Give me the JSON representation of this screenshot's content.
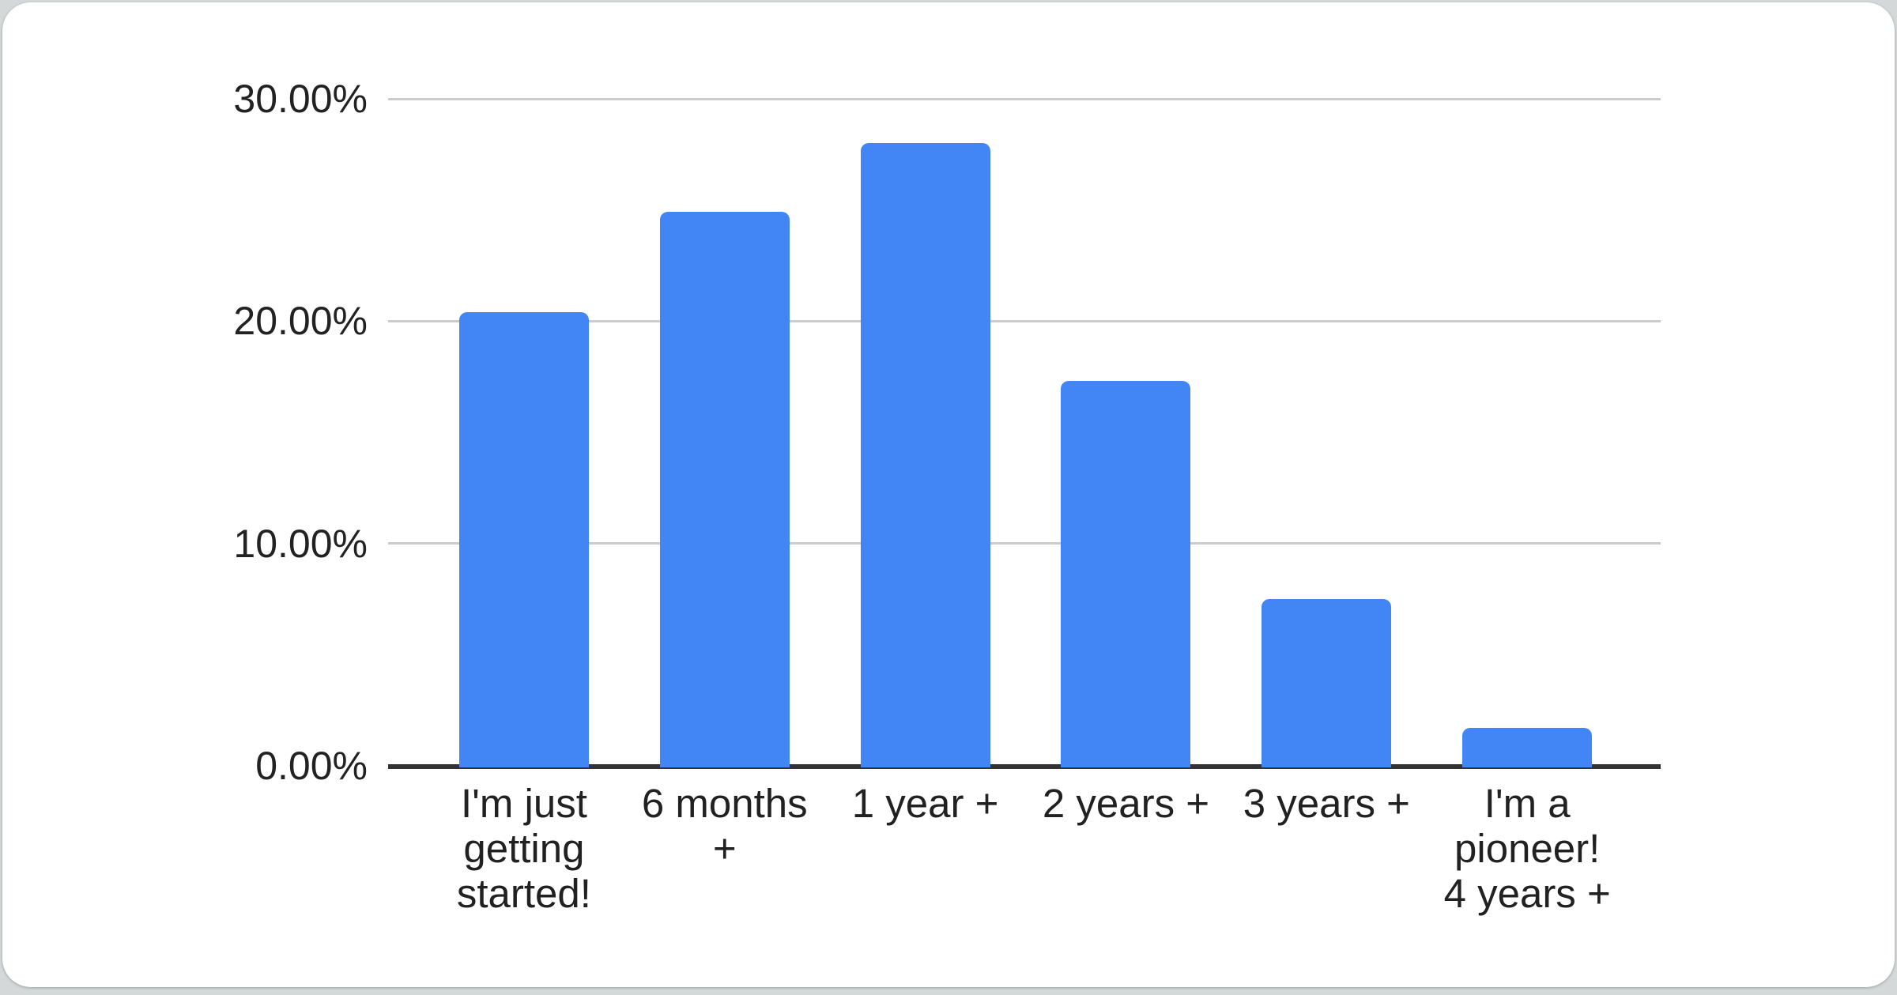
{
  "chart_data": {
    "type": "bar",
    "title": "",
    "xlabel": "",
    "ylabel": "",
    "categories": [
      "I'm just getting started!",
      "6 months +",
      "1 year +",
      "2 years +",
      "3 years +",
      "I'm a pioneer! 4 years +"
    ],
    "categories_display": [
      "I'm just\ngetting\nstarted!",
      "6 months\n+",
      "1 year +",
      "2 years +",
      "3 years +",
      "I'm a\npioneer!\n4 years +"
    ],
    "values": [
      20.4,
      24.9,
      28.0,
      17.3,
      7.5,
      1.7
    ],
    "unit": "%",
    "ylim": [
      0,
      30
    ],
    "y_tick_labels": [
      "30.00%",
      "20.00%",
      "10.00%",
      "0.00%"
    ],
    "y_tick_values": [
      30,
      20,
      10,
      0
    ],
    "grid": true,
    "legend": "none",
    "bar_color": "#4285f4",
    "gridline_color": "#cccccc",
    "axis_line_color": "#333333",
    "tick_label_color": "#222222",
    "category_label_color": "#212121"
  }
}
